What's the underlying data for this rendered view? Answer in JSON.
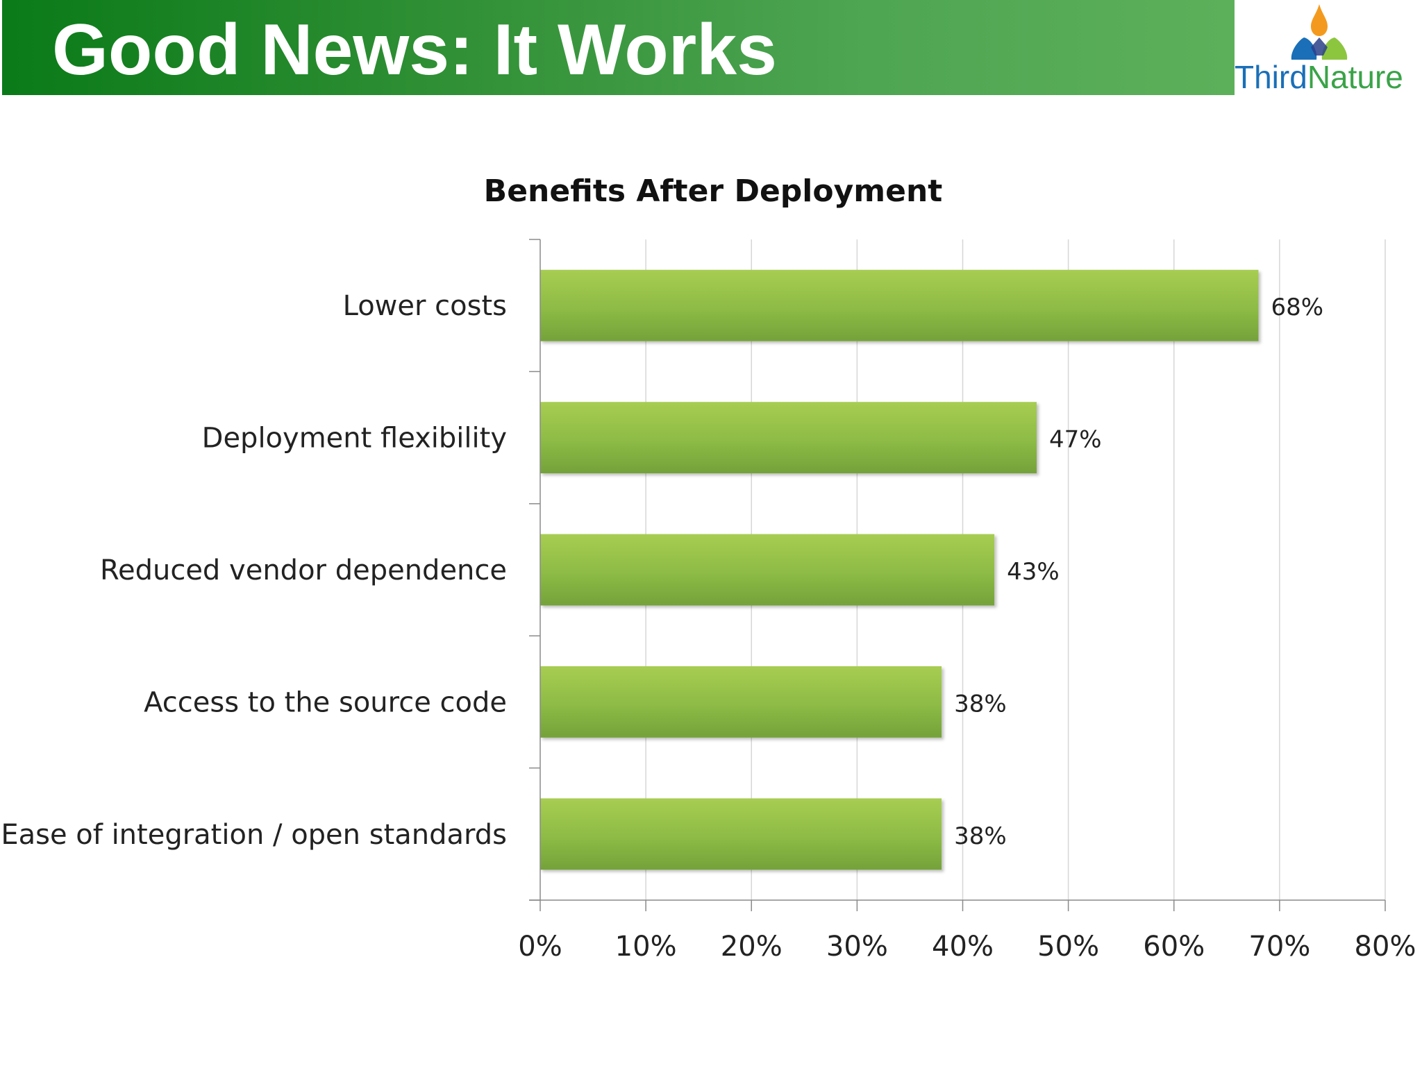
{
  "slide": {
    "title": "Good News: It Works",
    "logo": {
      "name": "Third Nature",
      "word1": "Third",
      "word2": "Nature",
      "colors": {
        "blue": "#1a6fb8",
        "green": "#3aa348",
        "orange": "#f39a1e"
      }
    }
  },
  "chart_data": {
    "type": "bar",
    "orientation": "horizontal",
    "title": "Benefits After Deployment",
    "categories": [
      "Lower costs",
      "Deployment flexibility",
      "Reduced vendor dependence",
      "Access to the source code",
      "Ease of integration / open standards"
    ],
    "values": [
      68,
      47,
      43,
      38,
      38
    ],
    "value_labels": [
      "68%",
      "47%",
      "43%",
      "38%",
      "38%"
    ],
    "xlim": [
      0,
      80
    ],
    "x_ticks": [
      0,
      10,
      20,
      30,
      40,
      50,
      60,
      70,
      80
    ],
    "x_tick_labels": [
      "0%",
      "10%",
      "20%",
      "30%",
      "40%",
      "50%",
      "60%",
      "70%",
      "80%"
    ],
    "grid": "vertical",
    "legend": "none",
    "bar_color": "#8dbb45"
  }
}
